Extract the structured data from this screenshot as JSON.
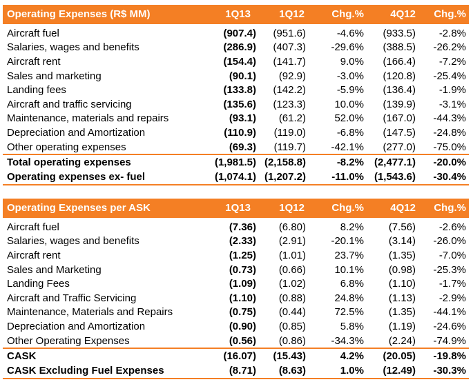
{
  "colors": {
    "accent": "#f47f24"
  },
  "table1": {
    "title": "Operating Expenses (R$ MM)",
    "columns": [
      "1Q13",
      "1Q12",
      "Chg.%",
      "4Q12",
      "Chg.%"
    ],
    "rows": [
      {
        "label": "Aircraft fuel",
        "v": [
          "(907.4)",
          "(951.6)",
          "-4.6%",
          "(933.5)",
          "-2.8%"
        ]
      },
      {
        "label": "Salaries, wages and benefits",
        "v": [
          "(286.9)",
          "(407.3)",
          "-29.6%",
          "(388.5)",
          "-26.2%"
        ]
      },
      {
        "label": "Aircraft rent",
        "v": [
          "(154.4)",
          "(141.7)",
          "9.0%",
          "(166.4)",
          "-7.2%"
        ]
      },
      {
        "label": "Sales and marketing",
        "v": [
          "(90.1)",
          "(92.9)",
          "-3.0%",
          "(120.8)",
          "-25.4%"
        ]
      },
      {
        "label": "Landing fees",
        "v": [
          "(133.8)",
          "(142.2)",
          "-5.9%",
          "(136.4)",
          "-1.9%"
        ]
      },
      {
        "label": "Aircraft and traffic servicing",
        "v": [
          "(135.6)",
          "(123.3)",
          "10.0%",
          "(139.9)",
          "-3.1%"
        ]
      },
      {
        "label": "Maintenance, materials and repairs",
        "v": [
          "(93.1)",
          "(61.2)",
          "52.0%",
          "(167.0)",
          "-44.3%"
        ]
      },
      {
        "label": "Depreciation and Amortization",
        "v": [
          "(110.9)",
          "(119.0)",
          "-6.8%",
          "(147.5)",
          "-24.8%"
        ]
      },
      {
        "label": "Other operating expenses",
        "v": [
          "(69.3)",
          "(119.7)",
          "-42.1%",
          "(277.0)",
          "-75.0%"
        ]
      }
    ],
    "totals": [
      {
        "label": "Total operating expenses",
        "v": [
          "(1,981.5)",
          "(2,158.8)",
          "-8.2%",
          "(2,477.1)",
          "-20.0%"
        ]
      },
      {
        "label": "Operating expenses ex- fuel",
        "v": [
          "(1,074.1)",
          "(1,207.2)",
          "-11.0%",
          "(1,543.6)",
          "-30.4%"
        ]
      }
    ]
  },
  "table2": {
    "title": "Operating Expenses per ASK",
    "columns": [
      "1Q13",
      "1Q12",
      "Chg.%",
      "4Q12",
      "Chg.%"
    ],
    "rows": [
      {
        "label": "Aircraft fuel",
        "v": [
          "(7.36)",
          "(6.80)",
          "8.2%",
          "(7.56)",
          "-2.6%"
        ]
      },
      {
        "label": "Salaries, wages and benefits",
        "v": [
          "(2.33)",
          "(2.91)",
          "-20.1%",
          "(3.14)",
          "-26.0%"
        ]
      },
      {
        "label": "Aircraft rent",
        "v": [
          "(1.25)",
          "(1.01)",
          "23.7%",
          "(1.35)",
          "-7.0%"
        ]
      },
      {
        "label": "Sales and Marketing",
        "v": [
          "(0.73)",
          "(0.66)",
          "10.1%",
          "(0.98)",
          "-25.3%"
        ]
      },
      {
        "label": "Landing Fees",
        "v": [
          "(1.09)",
          "(1.02)",
          "6.8%",
          "(1.10)",
          "-1.7%"
        ]
      },
      {
        "label": "Aircraft and Traffic Servicing",
        "v": [
          "(1.10)",
          "(0.88)",
          "24.8%",
          "(1.13)",
          "-2.9%"
        ]
      },
      {
        "label": "Maintenance, Materials and Repairs",
        "v": [
          "(0.75)",
          "(0.44)",
          "72.5%",
          "(1.35)",
          "-44.1%"
        ]
      },
      {
        "label": "Depreciation and Amortization",
        "v": [
          "(0.90)",
          "(0.85)",
          "5.8%",
          "(1.19)",
          "-24.6%"
        ]
      },
      {
        "label": "Other Operating Expenses",
        "v": [
          "(0.56)",
          "(0.86)",
          "-34.3%",
          "(2.24)",
          "-74.9%"
        ]
      }
    ],
    "totals": [
      {
        "label": "CASK",
        "v": [
          "(16.07)",
          "(15.43)",
          "4.2%",
          "(20.05)",
          "-19.8%"
        ]
      },
      {
        "label": "CASK Excluding Fuel Expenses",
        "v": [
          "(8.71)",
          "(8.63)",
          "1.0%",
          "(12.49)",
          "-30.3%"
        ]
      }
    ]
  }
}
